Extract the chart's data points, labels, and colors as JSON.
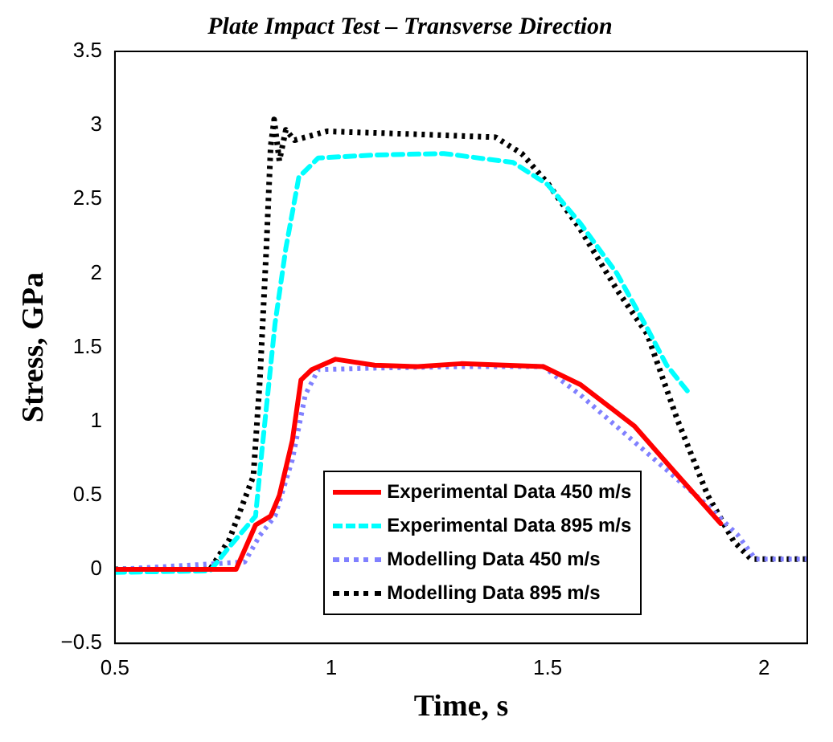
{
  "chart_data": {
    "type": "line",
    "title": "Plate Impact Test – Transverse Direction",
    "xlabel": "Time, s",
    "ylabel": "Stress, GPa",
    "xlim": [
      0.5,
      2.1
    ],
    "xticks": [
      0.5,
      1,
      1.5,
      2
    ],
    "ylim": [
      -0.5,
      3.5
    ],
    "yticks": [
      {
        "value": -0.5,
        "label": "−0.5"
      },
      0,
      0.5,
      1,
      1.5,
      2,
      2.5,
      3,
      3.5
    ],
    "grid": false,
    "legend": "bottom right",
    "marker": "none",
    "series": [
      {
        "name": "Experimental Data 450 m/s",
        "color": "#ff0000",
        "line_style": "solid",
        "x": [
          0.5,
          0.78,
          0.825,
          0.86,
          0.88,
          0.91,
          0.93,
          0.955,
          1.01,
          1.1,
          1.2,
          1.3,
          1.4,
          1.49,
          1.575,
          1.7,
          1.79,
          1.9
        ],
        "values": [
          0,
          0,
          0.3,
          0.36,
          0.5,
          0.87,
          1.28,
          1.35,
          1.42,
          1.38,
          1.37,
          1.39,
          1.38,
          1.37,
          1.25,
          0.97,
          0.67,
          0.31
        ]
      },
      {
        "name": "Experimental Data 895 m/s",
        "color": "#00ffff",
        "line_style": "dashed",
        "x": [
          0.5,
          0.72,
          0.764,
          0.825,
          0.84,
          0.87,
          0.895,
          0.925,
          0.97,
          1.1,
          1.26,
          1.42,
          1.5,
          1.575,
          1.66,
          1.73,
          1.775,
          1.83
        ],
        "values": [
          -0.02,
          -0.01,
          0.15,
          0.36,
          0.81,
          1.66,
          2.17,
          2.65,
          2.78,
          2.8,
          2.81,
          2.75,
          2.6,
          2.34,
          2.0,
          1.63,
          1.38,
          1.18
        ]
      },
      {
        "name": "Modelling Data 450 m/s",
        "color": "#8080ff",
        "line_style": "dotted",
        "x": [
          0.5,
          0.8,
          0.835,
          0.87,
          0.91,
          0.94,
          0.97,
          1.1,
          1.3,
          1.49,
          1.575,
          1.76,
          1.87,
          1.94,
          1.98,
          2.1
        ],
        "values": [
          0,
          0.05,
          0.23,
          0.36,
          0.74,
          1.18,
          1.35,
          1.36,
          1.37,
          1.37,
          1.18,
          0.71,
          0.43,
          0.23,
          0.07,
          0.07
        ]
      },
      {
        "name": "Modelling Data 895 m/s",
        "color": "#000000",
        "line_style": "dotted",
        "x": [
          0.5,
          0.72,
          0.764,
          0.82,
          0.835,
          0.85,
          0.86,
          0.868,
          0.88,
          0.895,
          0.915,
          0.99,
          1.2,
          1.38,
          1.44,
          1.5,
          1.575,
          1.66,
          1.73,
          1.8,
          1.87,
          1.93,
          1.97,
          2.1
        ],
        "values": [
          0,
          0,
          0.2,
          0.63,
          1.28,
          2.17,
          2.86,
          3.04,
          2.76,
          2.97,
          2.9,
          2.96,
          2.94,
          2.92,
          2.81,
          2.61,
          2.3,
          1.89,
          1.59,
          1.01,
          0.5,
          0.19,
          0.07,
          0.07
        ]
      }
    ]
  }
}
